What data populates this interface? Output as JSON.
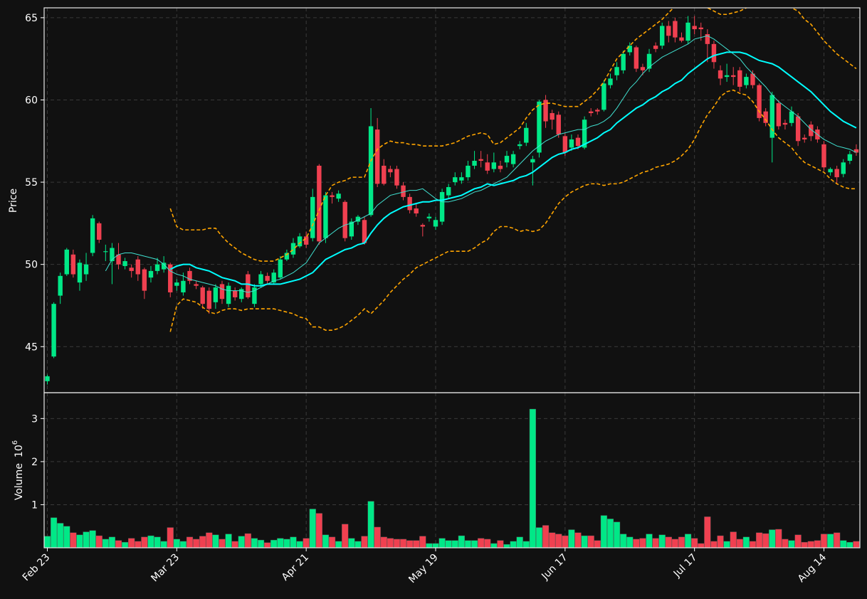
{
  "chart_data": {
    "type": "candlestick",
    "ylabel": "Price",
    "categories": [
      "Feb 23",
      null,
      null,
      null,
      null,
      null,
      null,
      null,
      null,
      null,
      null,
      null,
      null,
      null,
      null,
      null,
      null,
      null,
      null,
      null,
      "Mar 23",
      null,
      null,
      null,
      null,
      null,
      null,
      null,
      null,
      null,
      null,
      null,
      null,
      null,
      null,
      null,
      null,
      null,
      null,
      null,
      "Apr 21",
      null,
      null,
      null,
      null,
      null,
      null,
      null,
      null,
      null,
      null,
      null,
      null,
      null,
      null,
      null,
      null,
      null,
      null,
      null,
      "May 19",
      null,
      null,
      null,
      null,
      null,
      null,
      null,
      null,
      null,
      null,
      null,
      null,
      null,
      null,
      null,
      null,
      null,
      null,
      null,
      "Jun 17",
      null,
      null,
      null,
      null,
      null,
      null,
      null,
      null,
      null,
      null,
      null,
      null,
      null,
      null,
      null,
      null,
      null,
      null,
      null,
      "Jul 17",
      null,
      null,
      null,
      null,
      null,
      null,
      null,
      null,
      null,
      null,
      null,
      null,
      null,
      null,
      null,
      null,
      null,
      null,
      null,
      "Aug 14",
      null,
      null,
      null,
      null,
      null
    ],
    "open": [
      42.9,
      44.4,
      48.1,
      49.4,
      50.6,
      48.9,
      49.4,
      50.7,
      52.5,
      50.75,
      50.2,
      50.6,
      49.9,
      49.8,
      50.3,
      49.7,
      49.2,
      49.6,
      49.7,
      50.0,
      48.7,
      48.3,
      49.6,
      48.8,
      48.6,
      48.4,
      47.7,
      48.8,
      47.6,
      48.4,
      47.9,
      49.4,
      47.6,
      48.8,
      49.3,
      48.9,
      49.2,
      50.3,
      50.6,
      51.1,
      51.7,
      51.6,
      56.0,
      51.6,
      54.2,
      54.0,
      53.8,
      51.7,
      52.6,
      52.7,
      53.0,
      58.2,
      56.0,
      55.8,
      55.8,
      54.8,
      54.1,
      53.4,
      52.4,
      52.8,
      52.3,
      52.6,
      54.2,
      55.0,
      55.1,
      55.3,
      56.0,
      56.4,
      56.2,
      55.8,
      56.0,
      56.2,
      56.1,
      57.2,
      57.4,
      56.2,
      56.8,
      60.0,
      59.2,
      59.1,
      57.8,
      57.1,
      57.7,
      57.1,
      59.3,
      59.4,
      59.4,
      60.9,
      61.5,
      61.8,
      62.9,
      63.2,
      62.0,
      61.9,
      63.3,
      63.3,
      64.5,
      64.8,
      63.8,
      63.6,
      64.5,
      64.4,
      64.0,
      63.4,
      61.8,
      61.4,
      61.5,
      61.8,
      60.9,
      61.6,
      60.9,
      59.3,
      57.7,
      59.8,
      58.6,
      58.6,
      59.0,
      57.7,
      58.5,
      58.2,
      57.3,
      55.6,
      55.8,
      55.5,
      56.3,
      57.0
    ],
    "high": [
      43.3,
      47.7,
      49.5,
      51.0,
      50.9,
      50.3,
      50.7,
      53.0,
      52.6,
      51.2,
      51.3,
      51.3,
      50.4,
      50.0,
      50.5,
      49.8,
      49.9,
      50.4,
      50.5,
      50.1,
      49.1,
      49.5,
      49.8,
      49.0,
      48.7,
      48.6,
      48.8,
      49.0,
      48.9,
      48.6,
      48.6,
      49.6,
      48.8,
      49.6,
      49.5,
      49.7,
      50.5,
      50.9,
      51.6,
      51.9,
      52.0,
      54.6,
      56.1,
      54.4,
      54.4,
      54.5,
      53.9,
      52.8,
      53.0,
      52.9,
      59.5,
      58.9,
      56.4,
      56.0,
      56.0,
      55.0,
      54.3,
      53.7,
      52.5,
      53.1,
      52.9,
      54.6,
      54.9,
      55.6,
      55.6,
      56.3,
      56.9,
      56.9,
      56.7,
      56.8,
      56.3,
      56.9,
      56.9,
      57.5,
      58.6,
      56.6,
      60.0,
      60.3,
      59.4,
      59.3,
      58.0,
      57.9,
      57.9,
      59.0,
      59.5,
      59.5,
      61.2,
      61.6,
      62.3,
      63.0,
      63.5,
      63.3,
      62.2,
      63.1,
      63.5,
      64.7,
      64.8,
      65.0,
      64.1,
      65.1,
      65.1,
      64.7,
      64.3,
      63.6,
      62.1,
      62.2,
      62.0,
      62.0,
      61.6,
      61.8,
      61.0,
      59.5,
      60.5,
      60.0,
      58.8,
      59.6,
      59.2,
      57.9,
      58.7,
      58.4,
      57.5,
      55.9,
      56.0,
      56.4,
      56.9,
      57.3
    ],
    "low": [
      42.7,
      44.3,
      47.6,
      49.3,
      49.2,
      48.4,
      49.0,
      50.5,
      51.3,
      50.2,
      48.8,
      49.7,
      49.7,
      49.2,
      49.0,
      47.9,
      48.9,
      49.4,
      49.5,
      48.0,
      48.4,
      48.1,
      48.8,
      48.5,
      47.3,
      47.0,
      47.3,
      47.6,
      47.4,
      47.8,
      47.7,
      47.9,
      47.4,
      48.6,
      48.8,
      48.8,
      49.1,
      50.2,
      50.4,
      51.0,
      51.0,
      51.4,
      51.2,
      51.3,
      53.7,
      53.8,
      51.4,
      51.5,
      52.4,
      51.2,
      52.9,
      54.7,
      54.8,
      55.3,
      54.6,
      53.9,
      53.1,
      52.9,
      51.7,
      52.6,
      52.1,
      52.4,
      54.0,
      54.8,
      54.9,
      55.1,
      55.8,
      55.9,
      55.5,
      55.6,
      55.6,
      55.9,
      55.9,
      57.0,
      57.2,
      54.8,
      56.5,
      58.3,
      58.2,
      57.7,
      56.6,
      56.9,
      57.0,
      57.0,
      59.0,
      59.1,
      59.3,
      60.7,
      61.2,
      61.6,
      62.7,
      61.7,
      61.5,
      61.7,
      62.9,
      63.1,
      63.5,
      63.5,
      63.5,
      63.4,
      64.0,
      63.6,
      62.3,
      61.9,
      60.9,
      61.1,
      60.9,
      60.5,
      60.7,
      60.7,
      58.7,
      58.4,
      56.2,
      58.2,
      58.2,
      58.4,
      57.2,
      57.4,
      57.5,
      57.4,
      55.7,
      55.4,
      54.9,
      55.3,
      56.1,
      56.6
    ],
    "close": [
      43.2,
      47.6,
      49.3,
      50.9,
      49.4,
      50.1,
      50.0,
      52.8,
      51.5,
      50.8,
      51.0,
      50.0,
      50.2,
      49.6,
      49.4,
      48.4,
      49.6,
      50.0,
      50.1,
      48.3,
      48.9,
      49.0,
      49.0,
      48.7,
      47.6,
      47.3,
      48.6,
      47.9,
      48.7,
      48.0,
      48.5,
      48.0,
      48.6,
      49.4,
      49.0,
      49.5,
      50.3,
      50.7,
      51.3,
      51.7,
      51.2,
      54.1,
      51.4,
      54.2,
      54.1,
      54.3,
      51.6,
      52.6,
      52.9,
      51.3,
      58.4,
      54.9,
      54.9,
      55.6,
      54.8,
      54.1,
      53.3,
      53.1,
      52.3,
      52.9,
      52.7,
      54.4,
      54.7,
      55.3,
      55.3,
      56.0,
      56.3,
      56.3,
      55.7,
      56.2,
      55.8,
      56.6,
      56.7,
      57.3,
      58.3,
      56.4,
      59.9,
      58.7,
      58.8,
      57.9,
      56.8,
      57.6,
      57.2,
      58.8,
      59.2,
      59.3,
      61.0,
      61.3,
      62.0,
      62.8,
      63.3,
      61.9,
      61.8,
      62.8,
      63.1,
      64.5,
      63.9,
      63.8,
      63.6,
      64.7,
      64.3,
      64.3,
      63.4,
      62.3,
      61.3,
      61.5,
      61.4,
      60.8,
      61.4,
      60.9,
      58.9,
      58.6,
      60.3,
      58.4,
      58.5,
      59.3,
      57.5,
      57.6,
      57.8,
      57.6,
      55.9,
      55.8,
      55.3,
      56.2,
      56.7,
      56.8
    ],
    "up_color": "#00e887",
    "down_color": "#f04050",
    "ylim": [
      42.2,
      65.6
    ],
    "yticks": [
      45,
      50,
      55,
      60,
      65
    ],
    "grid": true,
    "lines": [
      {
        "color": "#40e0d0",
        "values": [
          null,
          null,
          null,
          null,
          null,
          null,
          null,
          null,
          null,
          49.6,
          50.3,
          50.6,
          50.7,
          50.7,
          50.6,
          50.5,
          50.4,
          50.3,
          50.0,
          49.6,
          49.4,
          49.3,
          49.1,
          49.0,
          48.9,
          48.8,
          48.7,
          48.5,
          48.4,
          48.4,
          48.4,
          48.3,
          48.4,
          48.6,
          48.8,
          49.0,
          49.1,
          49.3,
          49.5,
          49.8,
          50.1,
          50.7,
          51.3,
          51.6,
          51.9,
          52.2,
          52.4,
          52.5,
          52.7,
          52.9,
          53.1,
          53.6,
          53.9,
          54.2,
          54.3,
          54.4,
          54.5,
          54.5,
          54.6,
          54.3,
          54.0,
          53.8,
          53.8,
          53.9,
          54.0,
          54.2,
          54.4,
          54.5,
          54.7,
          54.9,
          55.1,
          55.3,
          55.7,
          56.1,
          56.5,
          56.9,
          57.2,
          57.5,
          57.7,
          57.9,
          58.0,
          58.1,
          58.2,
          58.2,
          58.4,
          58.5,
          58.7,
          59.0,
          59.5,
          60.1,
          60.7,
          61.1,
          61.6,
          62.0,
          62.3,
          62.6,
          62.8,
          63.0,
          63.2,
          63.4,
          63.7,
          63.8,
          63.9,
          63.7,
          63.4,
          63.1,
          62.8,
          62.5,
          62.0,
          61.6,
          61.2,
          60.8,
          60.3,
          59.9,
          59.6,
          59.3,
          59.0,
          58.6,
          58.2,
          57.9,
          57.6,
          57.4,
          57.2,
          57.1,
          57.0,
          56.8
        ]
      },
      {
        "color": "#00ffff",
        "values": [
          null,
          null,
          null,
          null,
          null,
          null,
          null,
          null,
          null,
          null,
          null,
          null,
          null,
          null,
          null,
          null,
          null,
          null,
          null,
          49.7,
          49.9,
          50.0,
          50.0,
          49.8,
          49.7,
          49.6,
          49.4,
          49.2,
          49.1,
          49.0,
          48.8,
          48.8,
          48.7,
          48.7,
          48.8,
          48.8,
          48.8,
          48.9,
          49.0,
          49.1,
          49.3,
          49.5,
          49.9,
          50.3,
          50.5,
          50.7,
          50.9,
          51.0,
          51.2,
          51.3,
          51.9,
          52.4,
          52.8,
          53.1,
          53.3,
          53.5,
          53.6,
          53.7,
          53.8,
          53.8,
          53.9,
          53.9,
          54.0,
          54.1,
          54.2,
          54.4,
          54.6,
          54.7,
          54.9,
          54.8,
          54.9,
          55.0,
          55.1,
          55.3,
          55.4,
          55.6,
          55.9,
          56.2,
          56.5,
          56.7,
          56.8,
          57.0,
          57.1,
          57.3,
          57.5,
          57.7,
          58.0,
          58.2,
          58.6,
          58.9,
          59.2,
          59.5,
          59.7,
          60.0,
          60.2,
          60.5,
          60.7,
          61.0,
          61.2,
          61.6,
          61.9,
          62.2,
          62.5,
          62.7,
          62.8,
          62.9,
          62.9,
          62.9,
          62.8,
          62.6,
          62.4,
          62.3,
          62.2,
          62.0,
          61.7,
          61.4,
          61.1,
          60.8,
          60.5,
          60.1,
          59.7,
          59.3,
          59.0,
          58.7,
          58.5,
          58.3
        ]
      },
      {
        "color": "#ffa500",
        "dashed": true,
        "values": [
          null,
          null,
          null,
          null,
          null,
          null,
          null,
          null,
          null,
          null,
          null,
          null,
          null,
          null,
          null,
          null,
          null,
          null,
          null,
          53.4,
          52.3,
          52.1,
          52.1,
          52.1,
          52.1,
          52.2,
          52.2,
          51.7,
          51.3,
          51.0,
          50.7,
          50.5,
          50.3,
          50.2,
          50.2,
          50.2,
          50.4,
          50.6,
          50.9,
          51.3,
          51.6,
          52.4,
          53.3,
          54.2,
          54.8,
          55.0,
          55.1,
          55.3,
          55.3,
          55.3,
          56.3,
          57.0,
          57.3,
          57.5,
          57.4,
          57.4,
          57.3,
          57.3,
          57.2,
          57.2,
          57.2,
          57.2,
          57.3,
          57.4,
          57.6,
          57.8,
          57.9,
          58.0,
          57.9,
          57.3,
          57.4,
          57.7,
          58.0,
          58.3,
          58.9,
          59.4,
          59.7,
          59.8,
          59.8,
          59.7,
          59.6,
          59.6,
          59.6,
          59.9,
          60.2,
          60.6,
          61.1,
          61.8,
          62.5,
          62.9,
          63.3,
          63.7,
          64.0,
          64.3,
          64.6,
          64.9,
          65.3,
          65.7,
          66.0,
          66.2,
          66.1,
          65.9,
          65.6,
          65.4,
          65.2,
          65.2,
          65.3,
          65.4,
          65.6,
          65.8,
          65.9,
          66.0,
          66.0,
          65.9,
          65.8,
          65.6,
          65.4,
          64.9,
          64.6,
          64.1,
          63.6,
          63.2,
          62.8,
          62.5,
          62.2,
          61.9
        ]
      },
      {
        "color": "#ffa500",
        "dashed": true,
        "values": [
          null,
          null,
          null,
          null,
          null,
          null,
          null,
          null,
          null,
          null,
          null,
          null,
          null,
          null,
          null,
          null,
          null,
          null,
          null,
          45.9,
          47.5,
          47.9,
          47.8,
          47.7,
          47.4,
          47.1,
          47.0,
          47.2,
          47.3,
          47.3,
          47.2,
          47.3,
          47.3,
          47.3,
          47.3,
          47.3,
          47.2,
          47.1,
          47.0,
          46.8,
          46.7,
          46.2,
          46.2,
          46.0,
          46.0,
          46.1,
          46.3,
          46.6,
          46.9,
          47.3,
          47.0,
          47.4,
          47.8,
          48.3,
          48.7,
          49.1,
          49.4,
          49.8,
          50.0,
          50.2,
          50.4,
          50.6,
          50.8,
          50.8,
          50.8,
          50.8,
          51.0,
          51.3,
          51.5,
          52.0,
          52.3,
          52.3,
          52.2,
          52.0,
          52.1,
          52.0,
          52.1,
          52.5,
          53.1,
          53.7,
          54.1,
          54.4,
          54.6,
          54.8,
          54.9,
          54.9,
          54.8,
          54.9,
          54.9,
          55.0,
          55.2,
          55.4,
          55.6,
          55.7,
          55.9,
          56.0,
          56.1,
          56.3,
          56.6,
          57.0,
          57.6,
          58.4,
          59.1,
          59.6,
          60.2,
          60.5,
          60.6,
          60.4,
          60.3,
          59.9,
          59.3,
          58.8,
          58.2,
          57.7,
          57.4,
          57.1,
          56.6,
          56.2,
          56.0,
          55.8,
          55.6,
          55.2,
          54.9,
          54.7,
          54.6,
          54.6
        ]
      }
    ],
    "volume": {
      "label": "Volume",
      "scale_base": "10",
      "scale_exponent": "6",
      "ylim": [
        0,
        3.6
      ],
      "yticks": [
        1,
        2,
        3
      ],
      "values": [
        0.27,
        0.7,
        0.57,
        0.5,
        0.35,
        0.3,
        0.37,
        0.4,
        0.28,
        0.2,
        0.25,
        0.17,
        0.13,
        0.22,
        0.15,
        0.25,
        0.28,
        0.25,
        0.15,
        0.47,
        0.2,
        0.15,
        0.25,
        0.2,
        0.27,
        0.35,
        0.3,
        0.2,
        0.32,
        0.15,
        0.27,
        0.33,
        0.22,
        0.18,
        0.12,
        0.18,
        0.22,
        0.2,
        0.25,
        0.15,
        0.22,
        0.9,
        0.8,
        0.3,
        0.25,
        0.15,
        0.55,
        0.22,
        0.15,
        0.27,
        1.08,
        0.48,
        0.25,
        0.22,
        0.2,
        0.2,
        0.17,
        0.17,
        0.27,
        0.1,
        0.1,
        0.22,
        0.17,
        0.17,
        0.28,
        0.17,
        0.17,
        0.22,
        0.2,
        0.1,
        0.17,
        0.08,
        0.15,
        0.25,
        0.15,
        3.22,
        0.47,
        0.52,
        0.35,
        0.32,
        0.28,
        0.42,
        0.35,
        0.28,
        0.28,
        0.17,
        0.75,
        0.67,
        0.6,
        0.32,
        0.25,
        0.2,
        0.22,
        0.32,
        0.22,
        0.3,
        0.25,
        0.2,
        0.25,
        0.32,
        0.22,
        0.1,
        0.72,
        0.15,
        0.28,
        0.15,
        0.37,
        0.2,
        0.25,
        0.15,
        0.35,
        0.33,
        0.42,
        0.43,
        0.2,
        0.17,
        0.3,
        0.13,
        0.15,
        0.17,
        0.32,
        0.32,
        0.35,
        0.17,
        0.13,
        0.15
      ]
    }
  }
}
